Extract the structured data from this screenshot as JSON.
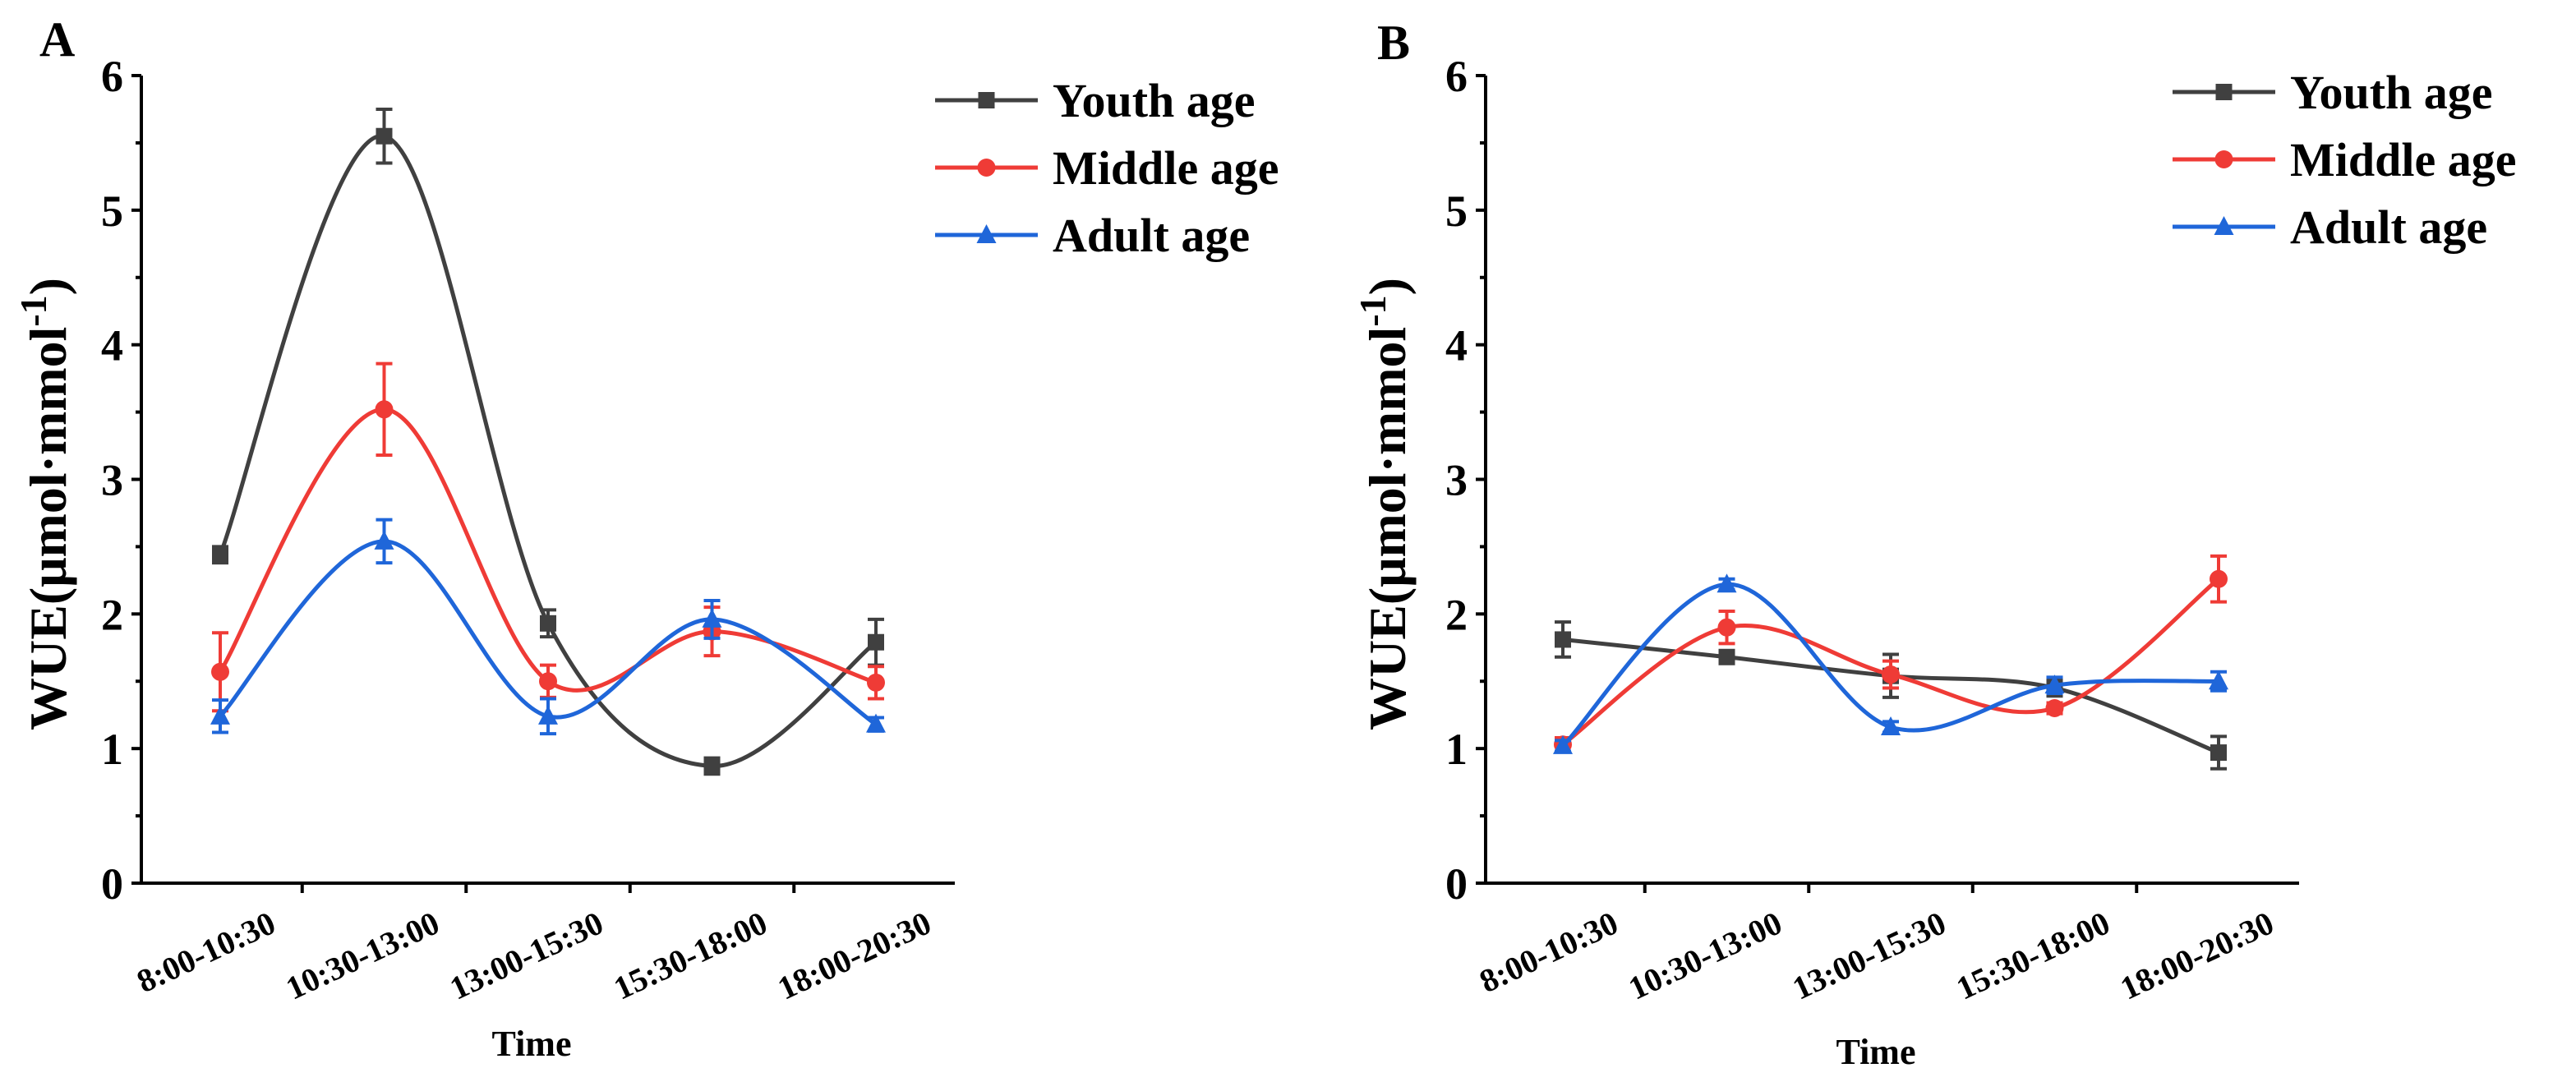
{
  "chart_data": [
    {
      "type": "line",
      "panel_label": "A",
      "xlabel": "Time",
      "ylabel_main": "WUE(μmol·mmol",
      "ylabel_sup": "-1",
      "ylabel_close": ")",
      "ylim": [
        0,
        6
      ],
      "yticks": [
        "0",
        "1",
        "2",
        "3",
        "4",
        "5",
        "6"
      ],
      "categories": [
        "8:00-10:30",
        "10:30-13:00",
        "13:00-15:30",
        "15:30-18:00",
        "18:00-20:30"
      ],
      "legend_position": "top-right",
      "series": [
        {
          "name": "Youth age",
          "color": "#404040",
          "marker": "square",
          "values": [
            2.44,
            5.55,
            1.93,
            0.87,
            1.79
          ],
          "errors": [
            0.06,
            0.2,
            0.1,
            0.06,
            0.17
          ]
        },
        {
          "name": "Middle age",
          "color": "#ef3b36",
          "marker": "circle",
          "values": [
            1.57,
            3.52,
            1.5,
            1.87,
            1.49
          ],
          "errors": [
            0.29,
            0.34,
            0.12,
            0.18,
            0.12
          ]
        },
        {
          "name": "Adult age",
          "color": "#1f66d9",
          "marker": "triangle",
          "values": [
            1.24,
            2.54,
            1.24,
            1.96,
            1.18
          ],
          "errors": [
            0.12,
            0.16,
            0.13,
            0.14,
            0.05
          ]
        }
      ]
    },
    {
      "type": "line",
      "panel_label": "B",
      "xlabel": "Time",
      "ylabel_main": "WUE(μmol·mmol",
      "ylabel_sup": "-1",
      "ylabel_close": ")",
      "ylim": [
        0,
        6
      ],
      "yticks": [
        "0",
        "1",
        "2",
        "3",
        "4",
        "5",
        "6"
      ],
      "categories": [
        "8:00-10:30",
        "10:30-13:00",
        "13:00-15:30",
        "15:30-18:00",
        "18:00-20:30"
      ],
      "legend_position": "top-right",
      "series": [
        {
          "name": "Youth age",
          "color": "#404040",
          "marker": "square",
          "values": [
            1.81,
            1.68,
            1.54,
            1.45,
            0.97
          ],
          "errors": [
            0.13,
            0.04,
            0.16,
            0.06,
            0.12
          ]
        },
        {
          "name": "Middle age",
          "color": "#ef3b36",
          "marker": "circle",
          "values": [
            1.03,
            1.9,
            1.55,
            1.3,
            2.26
          ],
          "errors": [
            0.05,
            0.12,
            0.1,
            0.04,
            0.17
          ]
        },
        {
          "name": "Adult age",
          "color": "#1f66d9",
          "marker": "triangle",
          "values": [
            1.02,
            2.22,
            1.16,
            1.47,
            1.5
          ],
          "errors": [
            0.04,
            0.04,
            0.04,
            0.06,
            0.07
          ]
        }
      ]
    }
  ]
}
